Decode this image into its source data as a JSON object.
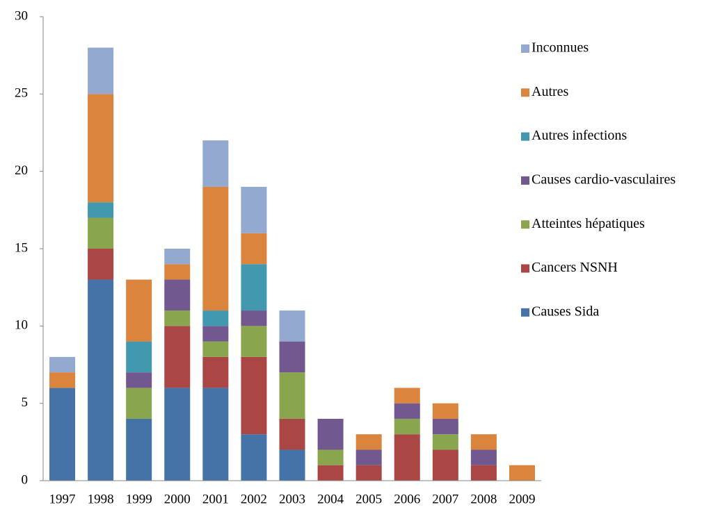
{
  "chart_data": {
    "type": "stacked_bar",
    "categories": [
      "1997",
      "1998",
      "1999",
      "2000",
      "2001",
      "2002",
      "2003",
      "2004",
      "2005",
      "2006",
      "2007",
      "2008",
      "2009"
    ],
    "series": [
      {
        "name": "Causes Sida",
        "color": "#4572a7",
        "values": [
          6,
          13,
          4,
          6,
          6,
          3,
          2,
          0,
          0,
          0,
          0,
          0,
          0
        ]
      },
      {
        "name": "Cancers NSNH",
        "color": "#aa4643",
        "values": [
          0,
          2,
          0,
          4,
          2,
          5,
          2,
          1,
          1,
          3,
          2,
          1,
          0
        ]
      },
      {
        "name": "Atteintes hépatiques",
        "color": "#89a54e",
        "values": [
          0,
          2,
          2,
          1,
          1,
          2,
          3,
          1,
          0,
          1,
          1,
          0,
          0
        ]
      },
      {
        "name": "Causes cardio-vasculaires",
        "color": "#71588f",
        "values": [
          0,
          0,
          1,
          2,
          1,
          1,
          2,
          2,
          1,
          1,
          1,
          1,
          0
        ]
      },
      {
        "name": "Autres infections",
        "color": "#4198af",
        "values": [
          0,
          1,
          2,
          0,
          1,
          3,
          0,
          0,
          0,
          0,
          0,
          0,
          0
        ]
      },
      {
        "name": "Autres",
        "color": "#db843d",
        "values": [
          1,
          7,
          4,
          1,
          8,
          2,
          0,
          0,
          1,
          1,
          1,
          1,
          1
        ]
      },
      {
        "name": "Inconnues",
        "color": "#93a9cf",
        "values": [
          1,
          3,
          0,
          1,
          3,
          3,
          2,
          0,
          0,
          0,
          0,
          0,
          0
        ]
      }
    ],
    "ylim": [
      0,
      30
    ],
    "yticks": [
      0,
      5,
      10,
      15,
      20,
      25,
      30
    ],
    "grid": false,
    "legend": "right"
  }
}
